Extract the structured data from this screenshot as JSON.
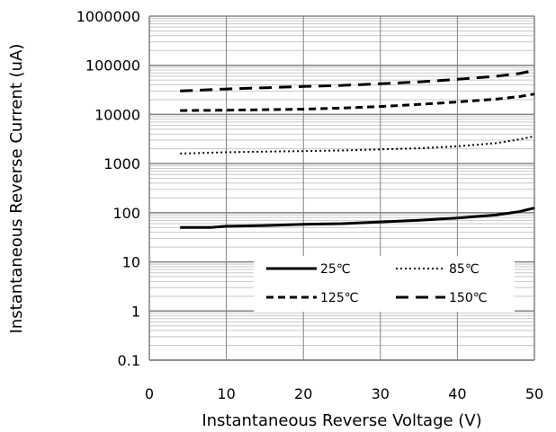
{
  "chart_data": {
    "type": "line",
    "title": "",
    "xlabel": "Instantaneous Reverse Voltage (V)",
    "ylabel": "Instantaneous Reverse Current (uA)",
    "xlim": [
      0,
      50
    ],
    "ylim": [
      0.1,
      1000000
    ],
    "yscale": "log",
    "grid": true,
    "legend_position": "lower-right",
    "x_ticks": [
      "0",
      "10",
      "20",
      "30",
      "40",
      "50"
    ],
    "y_ticks": [
      "0.1",
      "1",
      "10",
      "100",
      "1000",
      "10000",
      "100000",
      "1000000"
    ],
    "series": [
      {
        "name": "25℃",
        "style": "solid",
        "color": "#000000",
        "x": [
          4,
          8,
          10,
          15,
          20,
          25,
          30,
          35,
          40,
          45,
          48,
          50
        ],
        "y": [
          50,
          50,
          53,
          55,
          58,
          60,
          65,
          70,
          78,
          90,
          105,
          125
        ]
      },
      {
        "name": "85℃",
        "style": "dotted",
        "color": "#000000",
        "x": [
          4,
          10,
          15,
          20,
          25,
          30,
          35,
          40,
          45,
          48,
          50
        ],
        "y": [
          1600,
          1700,
          1750,
          1800,
          1850,
          1950,
          2050,
          2250,
          2600,
          3100,
          3600
        ]
      },
      {
        "name": "125℃",
        "style": "dashed",
        "color": "#000000",
        "x": [
          4,
          10,
          15,
          20,
          25,
          30,
          35,
          40,
          45,
          48,
          50
        ],
        "y": [
          12000,
          12200,
          12500,
          12800,
          13500,
          14500,
          16000,
          18000,
          20500,
          23000,
          26000
        ]
      },
      {
        "name": "150℃",
        "style": "longdash",
        "color": "#000000",
        "x": [
          4,
          10,
          15,
          20,
          25,
          30,
          35,
          40,
          45,
          48,
          50
        ],
        "y": [
          30000,
          33000,
          35000,
          37000,
          39000,
          42000,
          46000,
          52000,
          60000,
          68000,
          78000
        ]
      }
    ]
  }
}
